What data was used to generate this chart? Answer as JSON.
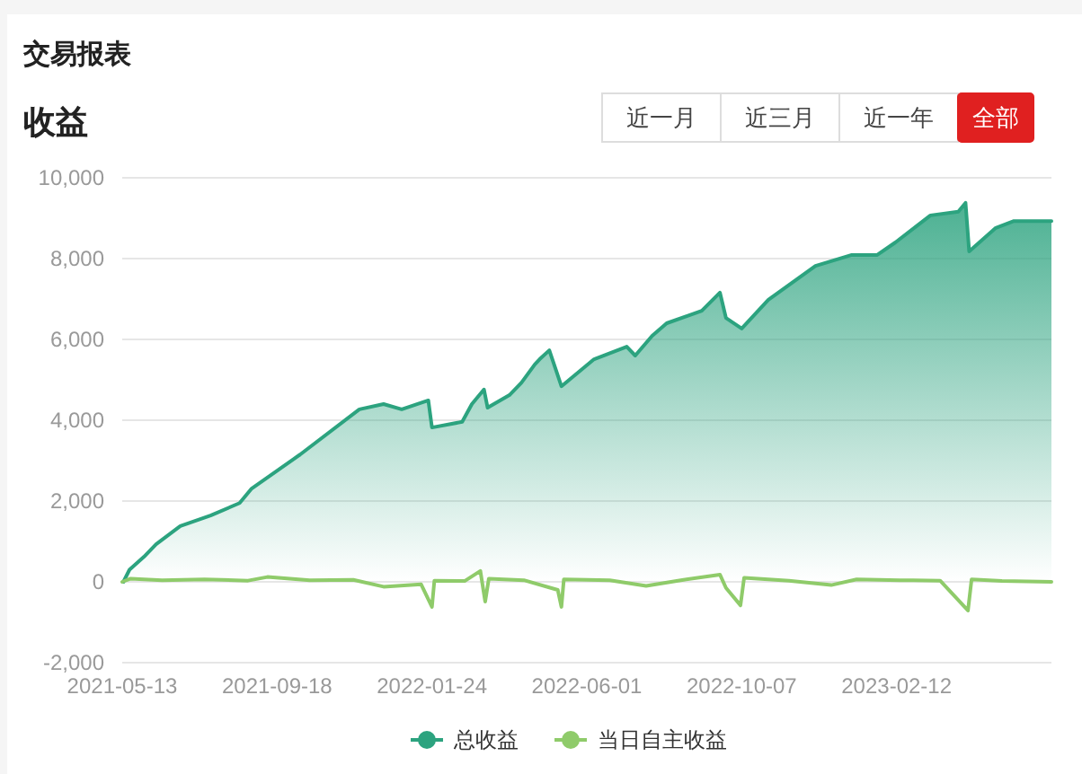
{
  "chart_data": {
    "type": "line",
    "title": "交易报表",
    "subtitle": "收益",
    "annotations": [
      "近一月",
      "近三月",
      "近一年",
      "全部"
    ],
    "xlim": [
      "2021-05-13",
      "2023-06-20"
    ],
    "xticks": [
      "2021-05-13",
      "2021-09-18",
      "2022-01-24",
      "2022-06-01",
      "2022-10-07",
      "2023-02-12"
    ],
    "ylim": [
      -2000,
      10000
    ],
    "yticks": [
      {
        "value": -2000,
        "label": "-2,000"
      },
      0,
      {
        "value": 2000,
        "label": "2,000"
      },
      {
        "value": 4000,
        "label": "4,000"
      },
      {
        "value": 6000,
        "label": "6,000"
      },
      {
        "value": 8000,
        "label": "8,000"
      },
      {
        "value": 10000,
        "label": "10,000"
      }
    ],
    "grid": "y",
    "legend": "bottom",
    "marker": "none",
    "line_style": "solid",
    "series": [
      {
        "name": "总收益",
        "type": "area",
        "color": "#2ca37f",
        "x": [
          "2021-05-14",
          "2021-05-19",
          "2021-05-31",
          "2021-06-10",
          "2021-06-30",
          "2021-07-25",
          "2021-08-18",
          "2021-08-28",
          "2021-10-07",
          "2021-11-25",
          "2021-12-15",
          "2021-12-30",
          "2022-01-21",
          "2022-01-24",
          "2022-02-18",
          "2022-02-26",
          "2022-03-08",
          "2022-03-11",
          "2022-03-29",
          "2022-04-08",
          "2022-04-19",
          "2022-04-23",
          "2022-05-01",
          "2022-05-11",
          "2022-06-07",
          "2022-07-04",
          "2022-07-11",
          "2022-07-25",
          "2022-08-06",
          "2022-09-04",
          "2022-09-19",
          "2022-09-24",
          "2022-10-07",
          "2022-10-29",
          "2022-12-07",
          "2023-01-06",
          "2023-01-27",
          "2023-02-11",
          "2023-03-12",
          "2023-04-04",
          "2023-04-10",
          "2023-04-13",
          "2023-05-05",
          "2023-05-20",
          "2023-06-20"
        ],
        "values": [
          0,
          300,
          620,
          930,
          1380,
          1640,
          1950,
          2310,
          3150,
          4270,
          4400,
          4270,
          4490,
          3820,
          3960,
          4400,
          4760,
          4310,
          4620,
          4930,
          5380,
          5510,
          5730,
          4840,
          5510,
          5820,
          5600,
          6090,
          6400,
          6710,
          7160,
          6530,
          6270,
          6980,
          7820,
          8090,
          8090,
          8400,
          9070,
          9160,
          9380,
          8180,
          8760,
          8930,
          8930
        ]
      },
      {
        "name": "当日自主收益",
        "type": "line",
        "color": "#8fcb6a",
        "x": [
          "2021-05-13",
          "2021-05-20",
          "2021-06-15",
          "2021-07-20",
          "2021-08-25",
          "2021-09-10",
          "2021-10-15",
          "2021-11-20",
          "2021-12-15",
          "2022-01-15",
          "2022-01-24",
          "2022-01-26",
          "2022-02-20",
          "2022-03-05",
          "2022-03-09",
          "2022-03-12",
          "2022-04-10",
          "2022-05-08",
          "2022-05-11",
          "2022-05-13",
          "2022-06-20",
          "2022-07-20",
          "2022-08-20",
          "2022-09-19",
          "2022-09-24",
          "2022-10-06",
          "2022-10-09",
          "2022-11-15",
          "2022-12-20",
          "2023-01-10",
          "2023-02-15",
          "2023-03-20",
          "2023-04-12",
          "2023-04-15",
          "2023-05-10",
          "2023-06-20"
        ],
        "values": [
          0,
          80,
          40,
          60,
          30,
          120,
          40,
          50,
          -120,
          -60,
          -620,
          30,
          20,
          270,
          -490,
          80,
          40,
          -200,
          -620,
          60,
          40,
          -100,
          50,
          180,
          -150,
          -580,
          100,
          30,
          -80,
          60,
          40,
          30,
          -710,
          60,
          20,
          0
        ]
      }
    ]
  }
}
